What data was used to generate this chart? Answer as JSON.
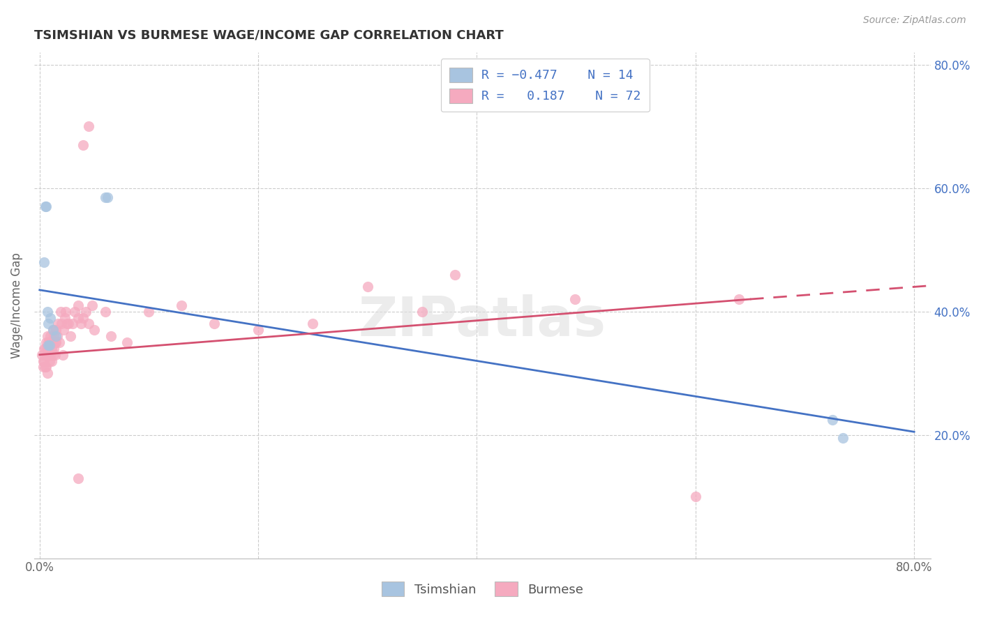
{
  "title": "TSIMSHIAN VS BURMESE WAGE/INCOME GAP CORRELATION CHART",
  "source": "Source: ZipAtlas.com",
  "ylabel": "Wage/Income Gap",
  "legend_label1": "Tsimshian",
  "legend_label2": "Burmese",
  "color_tsimshian": "#a8c4e0",
  "color_burmese": "#f5aabf",
  "color_line_tsimshian": "#4472c4",
  "color_line_burmese": "#d45070",
  "color_legend_text": "#4472c4",
  "color_grid": "#cccccc",
  "background_color": "#ffffff",
  "watermark": "ZIPatlas",
  "xlim": [
    0.0,
    0.8
  ],
  "ylim": [
    0.0,
    0.8
  ],
  "yticks": [
    0.2,
    0.4,
    0.6,
    0.8
  ],
  "ytick_labels": [
    "20.0%",
    "40.0%",
    "60.0%",
    "80.0%"
  ],
  "xtick_labels_show": [
    "0.0%",
    "80.0%"
  ],
  "tsimshian_x": [
    0.004,
    0.005,
    0.006,
    0.007,
    0.008,
    0.01,
    0.012,
    0.015,
    0.06,
    0.062,
    0.008,
    0.009,
    0.725,
    0.735
  ],
  "tsimshian_y": [
    0.48,
    0.57,
    0.57,
    0.4,
    0.38,
    0.39,
    0.37,
    0.36,
    0.585,
    0.585,
    0.345,
    0.345,
    0.225,
    0.195
  ],
  "burmese_x": [
    0.002,
    0.003,
    0.003,
    0.004,
    0.004,
    0.005,
    0.005,
    0.005,
    0.006,
    0.006,
    0.006,
    0.007,
    0.007,
    0.007,
    0.008,
    0.008,
    0.008,
    0.009,
    0.009,
    0.01,
    0.01,
    0.01,
    0.011,
    0.011,
    0.012,
    0.012,
    0.012,
    0.013,
    0.013,
    0.014,
    0.014,
    0.015,
    0.015,
    0.016,
    0.017,
    0.018,
    0.019,
    0.02,
    0.021,
    0.022,
    0.023,
    0.024,
    0.025,
    0.026,
    0.028,
    0.03,
    0.032,
    0.035,
    0.035,
    0.038,
    0.04,
    0.042,
    0.045,
    0.048,
    0.05,
    0.06,
    0.065,
    0.04,
    0.045,
    0.08,
    0.1,
    0.13,
    0.16,
    0.2,
    0.25,
    0.3,
    0.35,
    0.38,
    0.49,
    0.6,
    0.64,
    0.035
  ],
  "burmese_y": [
    0.33,
    0.32,
    0.31,
    0.34,
    0.32,
    0.31,
    0.33,
    0.34,
    0.31,
    0.33,
    0.35,
    0.3,
    0.34,
    0.36,
    0.33,
    0.35,
    0.34,
    0.32,
    0.35,
    0.35,
    0.33,
    0.36,
    0.34,
    0.32,
    0.37,
    0.33,
    0.35,
    0.34,
    0.36,
    0.35,
    0.33,
    0.35,
    0.37,
    0.36,
    0.38,
    0.35,
    0.4,
    0.38,
    0.33,
    0.37,
    0.39,
    0.4,
    0.38,
    0.38,
    0.36,
    0.38,
    0.4,
    0.39,
    0.41,
    0.38,
    0.39,
    0.4,
    0.38,
    0.41,
    0.37,
    0.4,
    0.36,
    0.67,
    0.7,
    0.35,
    0.4,
    0.41,
    0.38,
    0.37,
    0.38,
    0.44,
    0.4,
    0.46,
    0.42,
    0.1,
    0.42,
    0.13
  ],
  "ts_line": [
    [
      0.0,
      0.435
    ],
    [
      0.8,
      0.205
    ]
  ],
  "bm_line_solid": [
    [
      0.0,
      0.33
    ],
    [
      0.65,
      0.42
    ]
  ],
  "bm_line_dash": [
    [
      0.65,
      0.42
    ],
    [
      0.815,
      0.442
    ]
  ]
}
